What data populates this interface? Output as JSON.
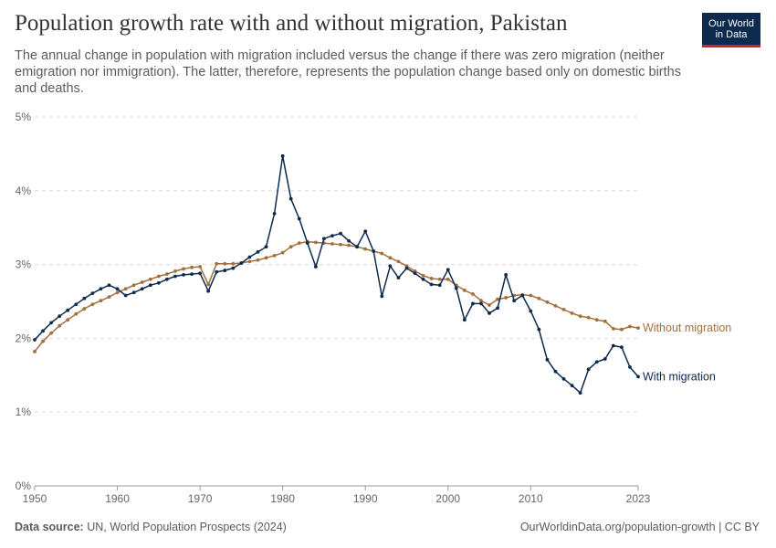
{
  "header": {
    "title": "Population growth rate with and without migration, Pakistan",
    "subtitle": "The annual change in population with migration included versus the change if there was zero migration (neither emigration nor immigration). The latter, therefore, represents the population change based only on domestic births and deaths."
  },
  "logo": {
    "line1": "Our World",
    "line2": "in Data",
    "bg_color": "#0d2a4f",
    "accent_color": "#ce261e"
  },
  "footer": {
    "source_label": "Data source:",
    "source_text": "UN, World Population Prospects (2024)",
    "url_text": "OurWorldinData.org/population-growth | CC BY"
  },
  "chart_data": {
    "type": "line",
    "ylim": [
      0,
      5
    ],
    "xlim": [
      1950,
      2023
    ],
    "y_ticks": [
      "0%",
      "1%",
      "2%",
      "3%",
      "4%",
      "5%"
    ],
    "x_ticks": [
      "1950",
      "1960",
      "1970",
      "1980",
      "1990",
      "2000",
      "2010",
      "2023"
    ],
    "x_tick_values": [
      1950,
      1960,
      1970,
      1980,
      1990,
      2000,
      2010,
      2023
    ],
    "grid": "horizontal dashed",
    "x": [
      1950,
      1951,
      1952,
      1953,
      1954,
      1955,
      1956,
      1957,
      1958,
      1959,
      1960,
      1961,
      1962,
      1963,
      1964,
      1965,
      1966,
      1967,
      1968,
      1969,
      1970,
      1971,
      1972,
      1973,
      1974,
      1975,
      1976,
      1977,
      1978,
      1979,
      1980,
      1981,
      1982,
      1983,
      1984,
      1985,
      1986,
      1987,
      1988,
      1989,
      1990,
      1991,
      1992,
      1993,
      1994,
      1995,
      1996,
      1997,
      1998,
      1999,
      2000,
      2001,
      2002,
      2003,
      2004,
      2005,
      2006,
      2007,
      2008,
      2009,
      2010,
      2011,
      2012,
      2013,
      2014,
      2015,
      2016,
      2017,
      2018,
      2019,
      2020,
      2021,
      2022,
      2023
    ],
    "series": [
      {
        "name": "Without migration",
        "color": "#a2703c",
        "values": [
          1.82,
          1.96,
          2.07,
          2.17,
          2.25,
          2.33,
          2.4,
          2.46,
          2.51,
          2.56,
          2.62,
          2.67,
          2.72,
          2.76,
          2.8,
          2.84,
          2.87,
          2.91,
          2.94,
          2.96,
          2.97,
          2.73,
          3.01,
          3.01,
          3.01,
          3.02,
          3.04,
          3.06,
          3.09,
          3.12,
          3.16,
          3.24,
          3.29,
          3.31,
          3.3,
          3.29,
          3.28,
          3.27,
          3.26,
          3.24,
          3.21,
          3.18,
          3.15,
          3.09,
          3.04,
          2.98,
          2.91,
          2.85,
          2.81,
          2.8,
          2.8,
          2.72,
          2.65,
          2.6,
          2.51,
          2.45,
          2.53,
          2.55,
          2.58,
          2.59,
          2.58,
          2.54,
          2.49,
          2.44,
          2.39,
          2.34,
          2.3,
          2.28,
          2.25,
          2.23,
          2.13,
          2.12,
          2.16,
          2.14
        ]
      },
      {
        "name": "With migration",
        "color": "#0d2a4f",
        "values": [
          1.98,
          2.1,
          2.21,
          2.3,
          2.38,
          2.46,
          2.54,
          2.61,
          2.67,
          2.72,
          2.67,
          2.58,
          2.62,
          2.67,
          2.72,
          2.75,
          2.8,
          2.84,
          2.86,
          2.87,
          2.88,
          2.64,
          2.9,
          2.92,
          2.95,
          3.02,
          3.1,
          3.17,
          3.24,
          3.69,
          4.47,
          3.89,
          3.62,
          3.29,
          2.97,
          3.35,
          3.39,
          3.42,
          3.32,
          3.24,
          3.45,
          3.18,
          2.57,
          2.98,
          2.82,
          2.95,
          2.88,
          2.8,
          2.73,
          2.72,
          2.93,
          2.68,
          2.25,
          2.47,
          2.47,
          2.34,
          2.41,
          2.86,
          2.51,
          2.58,
          2.37,
          2.12,
          1.71,
          1.55,
          1.45,
          1.36,
          1.26,
          1.58,
          1.68,
          1.72,
          1.9,
          1.88,
          1.61,
          1.48
        ]
      }
    ]
  }
}
